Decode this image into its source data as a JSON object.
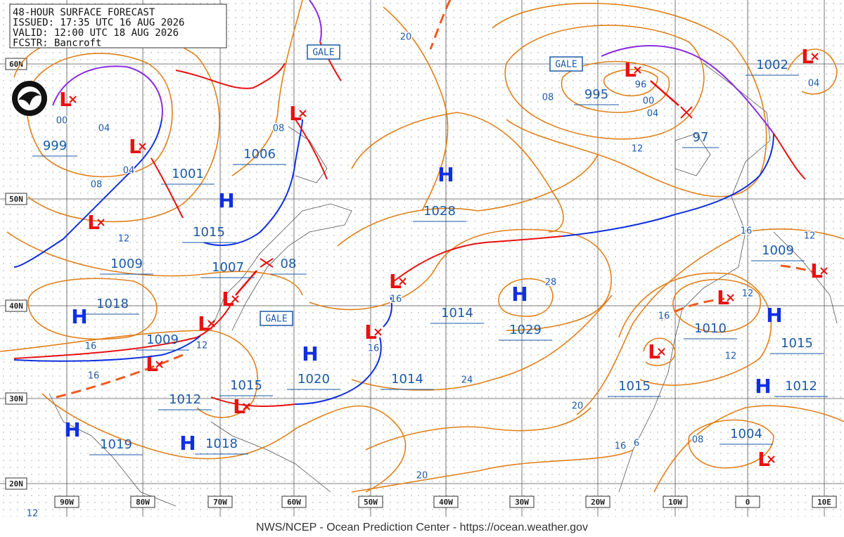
{
  "header": {
    "lines": [
      "48-HOUR SURFACE FORECAST",
      "ISSUED: 17:35 UTC 16 AUG 2026",
      "VALID: 12:00 UTC 18 AUG 2026",
      "FCSTR: Bancroft"
    ]
  },
  "footer": "NWS/NCEP - Ocean Prediction Center - https://ocean.weather.gov",
  "lat_labels": [
    "60N",
    "50N",
    "40N",
    "30N",
    "20N"
  ],
  "lon_labels": [
    "90W",
    "80W",
    "70W",
    "60W",
    "50W",
    "40W",
    "30W",
    "20W",
    "10W",
    "0",
    "10E"
  ],
  "gale_labels": [
    "GALE",
    "GALE",
    "GALE"
  ],
  "highs": [
    "H",
    "H",
    "H",
    "H",
    "H",
    "H",
    "H",
    "H",
    "H"
  ],
  "lows": [
    "L",
    "L",
    "L",
    "L",
    "L",
    "L",
    "L",
    "L",
    "L",
    "L",
    "L",
    "L",
    "L",
    "L",
    "L",
    "L"
  ],
  "pressure_labels": [
    "999",
    "1001",
    "1006",
    "1015",
    "1009",
    "1007",
    "08",
    "1018",
    "1009",
    "1015",
    "1012",
    "1020",
    "1014",
    "1014",
    "1028",
    "1029",
    "995",
    "97",
    "1002",
    "1009",
    "1010",
    "1015",
    "1015",
    "1012",
    "1004",
    "1019",
    "1018"
  ],
  "isobar_labels": [
    "00",
    "04",
    "04",
    "08",
    "12",
    "08",
    "20",
    "08",
    "96",
    "00",
    "04",
    "12",
    "04",
    "16",
    "12",
    "12",
    "16",
    "12",
    "28",
    "16",
    "16",
    "16",
    "12",
    "16",
    "24",
    "20",
    "16",
    "6",
    "08",
    "20",
    "12"
  ]
}
